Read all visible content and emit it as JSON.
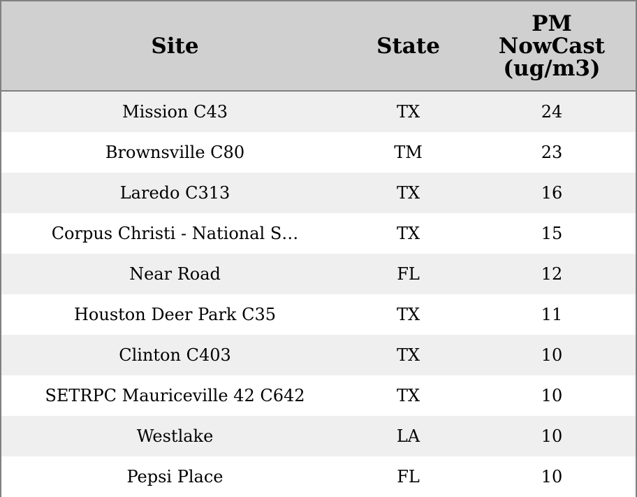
{
  "chart_data": {
    "type": "table",
    "columns": [
      "Site",
      "State",
      "PM\nNowCast\n(ug/m3)"
    ],
    "rows": [
      [
        "Mission C43",
        "TX",
        "24"
      ],
      [
        "Brownsville C80",
        "TM",
        "23"
      ],
      [
        "Laredo C313",
        "TX",
        "16"
      ],
      [
        "Corpus Christi - National S…",
        "TX",
        "15"
      ],
      [
        "Near Road",
        "FL",
        "12"
      ],
      [
        "Houston Deer Park C35",
        "TX",
        "11"
      ],
      [
        "Clinton C403",
        "TX",
        "10"
      ],
      [
        "SETRPC Mauriceville 42 C642",
        "TX",
        "10"
      ],
      [
        "Westlake",
        "LA",
        "10"
      ],
      [
        "Pepsi Place",
        "FL",
        "10"
      ]
    ]
  },
  "colors": {
    "header_background": "#d0d0d0",
    "odd_row_background": "#efefef",
    "even_row_background": "#ffffff",
    "border": "#808080"
  }
}
